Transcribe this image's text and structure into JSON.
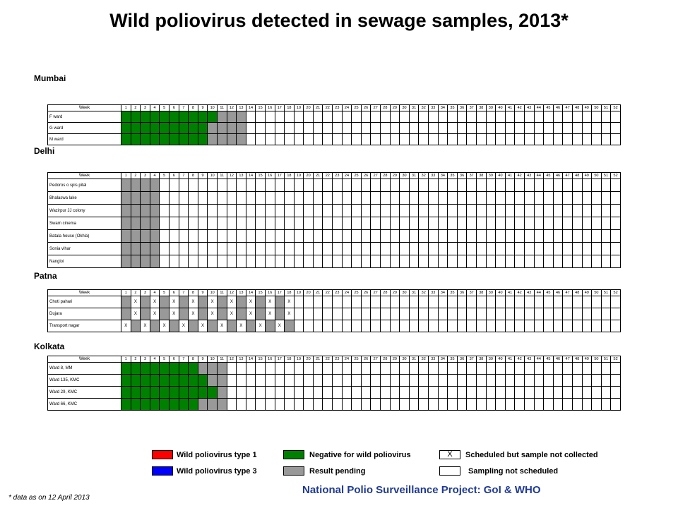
{
  "title": "Wild poliovirus detected in sewage samples, 2013*",
  "week_header": "Week",
  "weeks": [
    "1",
    "2",
    "3",
    "4",
    "5",
    "6",
    "7",
    "8",
    "9",
    "10",
    "11",
    "12",
    "13",
    "14",
    "15",
    "16",
    "17",
    "18",
    "19",
    "20",
    "21",
    "22",
    "23",
    "24",
    "25",
    "26",
    "27",
    "28",
    "29",
    "30",
    "31",
    "32",
    "33",
    "34",
    "35",
    "36",
    "37",
    "38",
    "39",
    "40",
    "41",
    "42",
    "43",
    "44",
    "45",
    "46",
    "47",
    "48",
    "49",
    "50",
    "51",
    "52"
  ],
  "colors": {
    "negative": "#008000",
    "pending": "#999999",
    "type1": "#ff0000",
    "type3": "#0000ff"
  },
  "panels": [
    {
      "city": "Mumbai",
      "sites": [
        {
          "name": "F ward",
          "cells": "GGGGGGGGGGPPP"
        },
        {
          "name": "G ward",
          "cells": "GGGGGGGGGPPPP"
        },
        {
          "name": "M ward",
          "cells": "GGGGGGGGGPPPP"
        }
      ]
    },
    {
      "city": "Delhi",
      "sites": [
        {
          "name": "Pedoros o spis pital",
          "cells": "PPPP"
        },
        {
          "name": "Bhalaswa lake",
          "cells": "PPPP"
        },
        {
          "name": "Wazirpur JJ colony",
          "cells": "PPPP"
        },
        {
          "name": "Swarn cinema",
          "cells": "PPPP"
        },
        {
          "name": "Batala house (Okhla)",
          "cells": "PPPP"
        },
        {
          "name": "Sonia vihar",
          "cells": "PPPP"
        },
        {
          "name": "Nangloi",
          "cells": "PPPP"
        }
      ]
    },
    {
      "city": "Patna",
      "sites": [
        {
          "name": "Choti pahari",
          "cells": "PXPXPXPXPXPXPXPXPX"
        },
        {
          "name": "Dujara",
          "cells": "PXPXPXPXPXPXPXPXPX"
        },
        {
          "name": "Transport nagar",
          "cells": "XPXPXPXPXPXPXPXPXP"
        }
      ]
    },
    {
      "city": "Kolkata",
      "sites": [
        {
          "name": "Ward 8, MM",
          "cells": "GGGGGGGGPPP"
        },
        {
          "name": "Ward 135, KMC",
          "cells": "GGGGGGGGGPP"
        },
        {
          "name": "Ward 29, KMC",
          "cells": "GGGGGGGGGGP"
        },
        {
          "name": "Ward 66, KMC",
          "cells": "GGGGGGGGPPP"
        }
      ]
    }
  ],
  "legend": {
    "type1": "Wild poliovirus type 1",
    "type3": "Wild poliovirus type 3",
    "negative": "Negative for wild poliovirus",
    "pending": "Result pending",
    "x_mark": "X",
    "not_collected": "Scheduled but sample not collected",
    "not_scheduled": "Sampling not scheduled"
  },
  "footnote": "* data as on 12 April 2013",
  "credit": "National Polio Surveillance Project: GoI & WHO"
}
